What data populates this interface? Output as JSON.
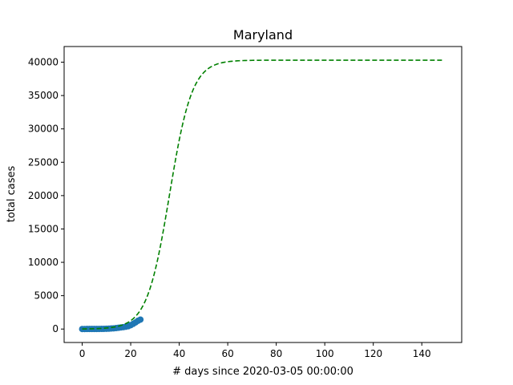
{
  "chart_data": {
    "type": "line",
    "title": "Maryland",
    "xlabel": "# days since 2020-03-05 00:00:00",
    "ylabel": "total cases",
    "xlim": [
      -7.45,
      156.45
    ],
    "ylim": [
      -2016.5,
      42346.5
    ],
    "x_ticks": [
      0,
      20,
      40,
      60,
      80,
      100,
      120,
      140
    ],
    "y_ticks": [
      0,
      5000,
      10000,
      15000,
      20000,
      25000,
      30000,
      35000,
      40000
    ],
    "grid": false,
    "series": [
      {
        "kind": "scatter",
        "color": "#1f77b4",
        "x": [
          0,
          1,
          2,
          3,
          4,
          5,
          6,
          7,
          8,
          9,
          10,
          11,
          12,
          13,
          14,
          15,
          16,
          17,
          18,
          19,
          20,
          21,
          22,
          23,
          24
        ],
        "y": [
          3,
          3,
          5,
          8,
          9,
          12,
          12,
          17,
          26,
          32,
          41,
          57,
          85,
          107,
          149,
          190,
          244,
          288,
          349,
          423,
          580,
          774,
          992,
          1239,
          1413
        ]
      },
      {
        "kind": "fit-line",
        "color": "#008000",
        "style": "dashed",
        "model": "logistic",
        "L": 40300,
        "k": 0.215,
        "x0": 36,
        "x_range": [
          0,
          149
        ]
      }
    ]
  }
}
